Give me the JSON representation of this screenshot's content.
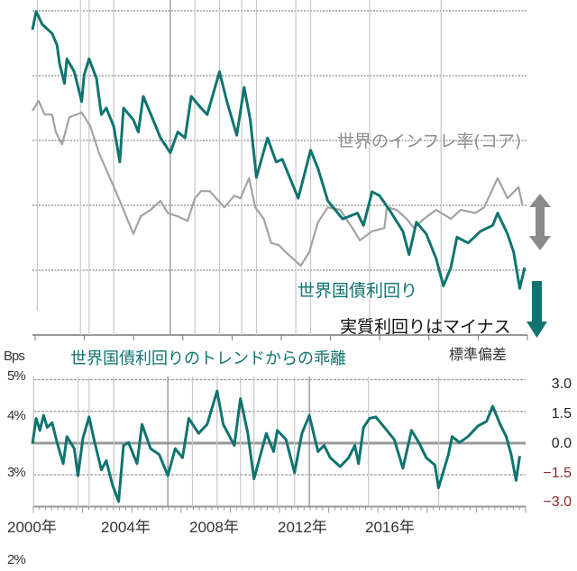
{
  "colors": {
    "yield": "#0f7470",
    "inflation": "#a3a3a3",
    "negative_label": "#8b2a2a",
    "grid": "#999999"
  },
  "labels": {
    "inflation_series": "世界のインフレ率(コア)",
    "yield_series": "世界国債利回り",
    "real_yield_note": "実質利回りはマイナス",
    "bottom_title": "世界国債利回りのトレンドからの乖離",
    "bps": "Bps",
    "std_dev": "標準偏差",
    "left_ticks": [
      "5%",
      "4%",
      "3%",
      "2%"
    ],
    "right_ticks": [
      "3.0",
      "1.5",
      "0.0",
      "−1.5",
      "−3.0"
    ],
    "x_ticks": [
      "2000年",
      "2004年",
      "2008年",
      "2012年",
      "2016年"
    ]
  },
  "chart_data": [
    {
      "type": "line",
      "panel": "top",
      "xlim": [
        2000,
        2020
      ],
      "ylim": [
        1,
        6
      ],
      "grid_y": [
        6,
        5,
        4,
        3,
        2
      ],
      "event_lines": [
        2000.2,
        2001.95,
        2002.3,
        2003.3,
        2005.6,
        2006.6,
        2007.6,
        2008.5,
        2009.1,
        2010.7,
        2011.3,
        2013.7,
        2016.6
      ],
      "series": [
        {
          "name": "世界国債利回り",
          "color": "#0f7470",
          "x": [
            2000.0,
            2000.15,
            2000.4,
            2000.8,
            2001.0,
            2001.1,
            2001.3,
            2001.4,
            2001.7,
            2002.0,
            2002.1,
            2002.3,
            2002.6,
            2002.8,
            2003.0,
            2003.3,
            2003.55,
            2003.7,
            2004.1,
            2004.3,
            2004.5,
            2004.9,
            2005.2,
            2005.6,
            2005.9,
            2006.2,
            2006.45,
            2006.85,
            2007.1,
            2007.6,
            2007.9,
            2008.3,
            2008.6,
            2008.85,
            2009.1,
            2009.55,
            2009.9,
            2010.15,
            2010.8,
            2011.3,
            2011.6,
            2012.0,
            2012.6,
            2013.2,
            2013.45,
            2013.8,
            2014.1,
            2014.5,
            2015.05,
            2015.3,
            2015.6,
            2016.0,
            2016.4,
            2016.7,
            2017.0,
            2017.25,
            2017.7,
            2018.2,
            2018.7,
            2018.9,
            2019.3,
            2019.55,
            2019.8,
            2020.0
          ],
          "y": [
            5.71,
            5.99,
            5.79,
            5.65,
            5.47,
            5.19,
            4.88,
            5.26,
            5.06,
            4.6,
            5.01,
            5.26,
            4.96,
            4.4,
            4.5,
            4.22,
            3.67,
            4.5,
            4.32,
            4.13,
            4.68,
            4.32,
            4.04,
            3.81,
            4.13,
            4.04,
            4.68,
            4.5,
            4.4,
            5.06,
            4.6,
            4.08,
            4.82,
            4.32,
            3.43,
            4.04,
            3.67,
            3.71,
            3.11,
            3.85,
            3.57,
            3.07,
            2.79,
            2.88,
            2.69,
            3.21,
            3.15,
            2.93,
            2.6,
            2.24,
            2.74,
            2.56,
            2.18,
            1.76,
            2.04,
            2.51,
            2.42,
            2.6,
            2.69,
            2.88,
            2.56,
            2.28,
            1.72,
            2.04
          ]
        },
        {
          "name": "世界のインフレ率(コア)",
          "color": "#a3a3a3",
          "x": [
            2000.0,
            2000.25,
            2000.5,
            2000.8,
            2000.95,
            2001.2,
            2001.5,
            2002.0,
            2002.35,
            2002.7,
            2003.3,
            2003.7,
            2004.1,
            2004.4,
            2004.8,
            2005.2,
            2005.5,
            2005.9,
            2006.3,
            2006.6,
            2006.85,
            2007.2,
            2007.8,
            2008.2,
            2008.45,
            2008.8,
            2009.05,
            2009.4,
            2009.7,
            2010.0,
            2010.4,
            2010.9,
            2011.25,
            2011.6,
            2012.0,
            2012.5,
            2013.0,
            2013.3,
            2013.8,
            2014.3,
            2014.4,
            2014.8,
            2015.2,
            2015.5,
            2015.9,
            2016.4,
            2017.0,
            2017.4,
            2018.0,
            2018.35,
            2018.9,
            2019.3,
            2019.75,
            2019.9
          ],
          "y": [
            4.46,
            4.61,
            4.4,
            4.4,
            4.13,
            3.94,
            4.36,
            4.43,
            4.22,
            3.81,
            3.29,
            2.93,
            2.56,
            2.83,
            2.93,
            3.07,
            2.88,
            2.83,
            2.76,
            3.11,
            3.22,
            3.22,
            2.97,
            3.15,
            3.11,
            3.42,
            2.97,
            2.79,
            2.42,
            2.39,
            2.24,
            2.07,
            2.28,
            2.74,
            2.97,
            2.93,
            2.65,
            2.46,
            2.6,
            2.65,
            2.97,
            2.93,
            2.79,
            2.65,
            2.79,
            2.93,
            2.79,
            2.93,
            2.88,
            2.97,
            3.42,
            3.11,
            3.28,
            3.01
          ]
        }
      ]
    },
    {
      "type": "line",
      "panel": "bottom",
      "title": "世界国債利回りのトレンドからの乖離",
      "ylabel": "標準偏差",
      "xlim": [
        2000,
        2020
      ],
      "ylim": [
        -3.0,
        3.0
      ],
      "y_ticks": [
        3.0,
        1.5,
        0.0,
        -1.5,
        -3.0
      ],
      "x_ticks": [
        2000,
        2004,
        2008,
        2012,
        2016
      ],
      "event_lines": [
        2000.05,
        2001.85,
        2002.3,
        2003.3,
        2005.5,
        2006.5,
        2007.5,
        2008.45,
        2009.0,
        2009.95,
        2010.65,
        2011.25,
        2013.65,
        2016.5
      ],
      "series": [
        {
          "color": "#0f7470",
          "x": [
            2000.0,
            2000.15,
            2000.3,
            2000.45,
            2000.6,
            2000.8,
            2001.0,
            2001.25,
            2001.4,
            2001.7,
            2001.85,
            2002.05,
            2002.3,
            2002.5,
            2002.8,
            2003.0,
            2003.25,
            2003.5,
            2003.7,
            2003.9,
            2004.25,
            2004.45,
            2004.8,
            2005.15,
            2005.5,
            2005.8,
            2006.1,
            2006.35,
            2006.75,
            2007.1,
            2007.5,
            2007.75,
            2008.2,
            2008.45,
            2008.75,
            2009.0,
            2009.2,
            2009.5,
            2009.8,
            2009.95,
            2010.3,
            2010.65,
            2010.95,
            2011.25,
            2011.6,
            2011.85,
            2012.1,
            2012.5,
            2012.85,
            2013.1,
            2013.25,
            2013.45,
            2013.7,
            2013.95,
            2014.3,
            2014.7,
            2015.05,
            2015.4,
            2015.7,
            2016.0,
            2016.35,
            2016.5,
            2016.9,
            2017.05,
            2017.35,
            2017.7,
            2018.1,
            2018.45,
            2018.7,
            2019.0,
            2019.25,
            2019.45,
            2019.65,
            2019.8
          ],
          "y": [
            -0.04,
            1.17,
            0.6,
            1.31,
            0.74,
            0.96,
            0.03,
            -0.97,
            0.31,
            -0.26,
            -1.54,
            0.24,
            1.24,
            0.17,
            -1.26,
            -0.83,
            -1.97,
            -2.76,
            -0.11,
            0.03,
            -0.97,
            0.89,
            -0.26,
            -0.54,
            -1.54,
            -0.26,
            -0.69,
            1.17,
            0.46,
            0.89,
            2.46,
            0.89,
            -0.11,
            2.1,
            0.46,
            -1.69,
            -0.83,
            0.46,
            -0.4,
            0.6,
            0.17,
            -1.4,
            0.46,
            1.31,
            -0.4,
            -0.11,
            -0.69,
            -1.11,
            -0.69,
            -0.11,
            -0.97,
            0.74,
            1.17,
            1.24,
            0.74,
            0.17,
            -1.19,
            0.6,
            0.03,
            -0.69,
            -1.04,
            -2.11,
            -0.54,
            0.31,
            0.03,
            0.31,
            0.81,
            1.03,
            1.74,
            0.89,
            0.31,
            -0.54,
            -1.76,
            -0.61
          ]
        }
      ]
    }
  ]
}
